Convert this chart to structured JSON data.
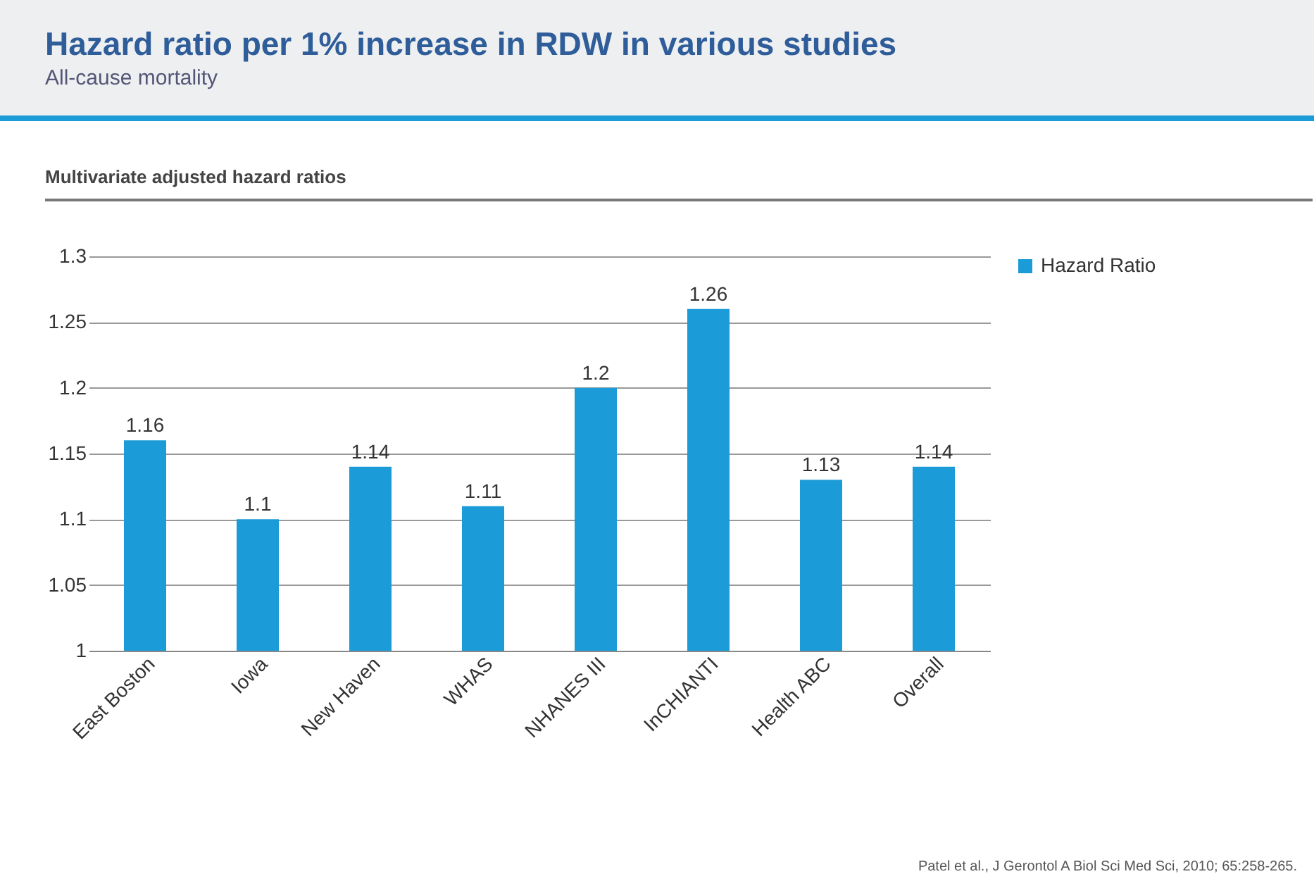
{
  "chart_data": {
    "type": "bar",
    "title": "Hazard ratio per 1% increase in RDW in various studies",
    "subtitle": "All-cause mortality",
    "annotations": [
      "Multivariate adjusted hazard ratios",
      "Patel et al., J Gerontol A Biol Sci Med Sci, 2010; 65:258-265."
    ],
    "categories": [
      "East Boston",
      "Iowa",
      "New Haven",
      "WHAS",
      "NHANES III",
      "InCHIANTI",
      "Health ABC",
      "Overall"
    ],
    "series": [
      {
        "name": "Hazard Ratio",
        "color": "#1b9bd7",
        "values": [
          1.16,
          1.1,
          1.14,
          1.11,
          1.2,
          1.26,
          1.13,
          1.14
        ]
      }
    ],
    "ylim": [
      1,
      1.3
    ],
    "yticks": [
      1,
      1.05,
      1.1,
      1.15,
      1.2,
      1.25,
      1.3
    ],
    "grid": "y",
    "legend": "right",
    "data_labels": true
  }
}
